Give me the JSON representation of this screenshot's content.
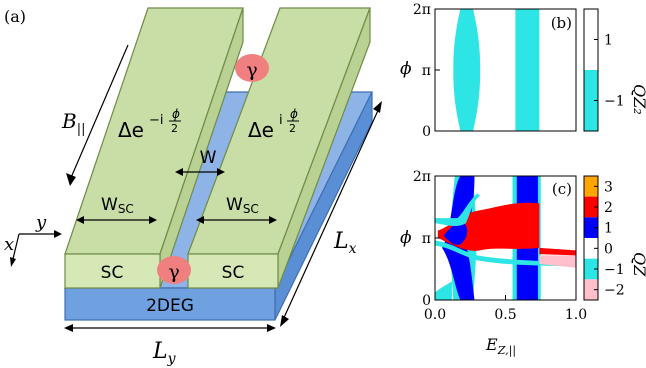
{
  "schematic": {
    "panel_label": "(a)",
    "b_field": "B",
    "b_sub": "||",
    "delta_left": "Δe",
    "delta_left_exp": "−i",
    "delta_right": "Δe",
    "delta_right_exp": "i",
    "phi_half_num": "ϕ",
    "phi_half_den": "2",
    "gamma": "γ",
    "w_gap": "W",
    "w_sc": "W",
    "w_sc_sub": "SC",
    "sc_label": "SC",
    "twodeg_label": "2DEG",
    "lx": "L",
    "lx_sub": "x",
    "ly": "L",
    "ly_sub": "y",
    "axis_x": "x",
    "axis_y": "y",
    "colors": {
      "sc_face": "#d5e8b5",
      "sc_top": "#c8dea6",
      "sc_edge": "#6f8b47",
      "wire": "#8eb3e6",
      "twodeg": "#6fa1e0",
      "gamma": "#f08080"
    }
  },
  "chart_data": [
    {
      "panel": "(b)",
      "type": "heatmap",
      "ylabel": "ϕ",
      "yticks": [
        "0",
        "π",
        "2π"
      ],
      "colorbar_label": "Q",
      "colorbar_sub": "Z₂",
      "colorbar_ticks": [
        "1",
        "−1"
      ],
      "colors": {
        "cyan": "#2ee5e5",
        "white": "#ffffff"
      },
      "regions": [
        {
          "value": -1,
          "x_at_phi0": [
            0.18,
            0.27
          ],
          "x_at_phi_pi": [
            0.13,
            0.32
          ]
        },
        {
          "value": -1,
          "x_range": [
            0.57,
            0.74
          ]
        }
      ]
    },
    {
      "panel": "(c)",
      "type": "heatmap",
      "xlabel": "E",
      "xlabel_sub": "Z,||",
      "ylabel": "ϕ",
      "xticks": [
        "0.0",
        "0.5",
        "1.0"
      ],
      "yticks": [
        "0",
        "π",
        "2π"
      ],
      "colorbar_label": "Q",
      "colorbar_sub": "Z",
      "colorbar_ticks": [
        "3",
        "2",
        "1",
        "0",
        "−1",
        "−2"
      ],
      "colorbar_levels": [
        {
          "value": 3,
          "color": "#ffa500"
        },
        {
          "value": 2,
          "color": "#ff0000"
        },
        {
          "value": 1,
          "color": "#0000ff"
        },
        {
          "value": 0,
          "color": "#ffffff"
        },
        {
          "value": -1,
          "color": "#2ee5e5"
        },
        {
          "value": -2,
          "color": "#ffc0cb"
        }
      ]
    }
  ]
}
